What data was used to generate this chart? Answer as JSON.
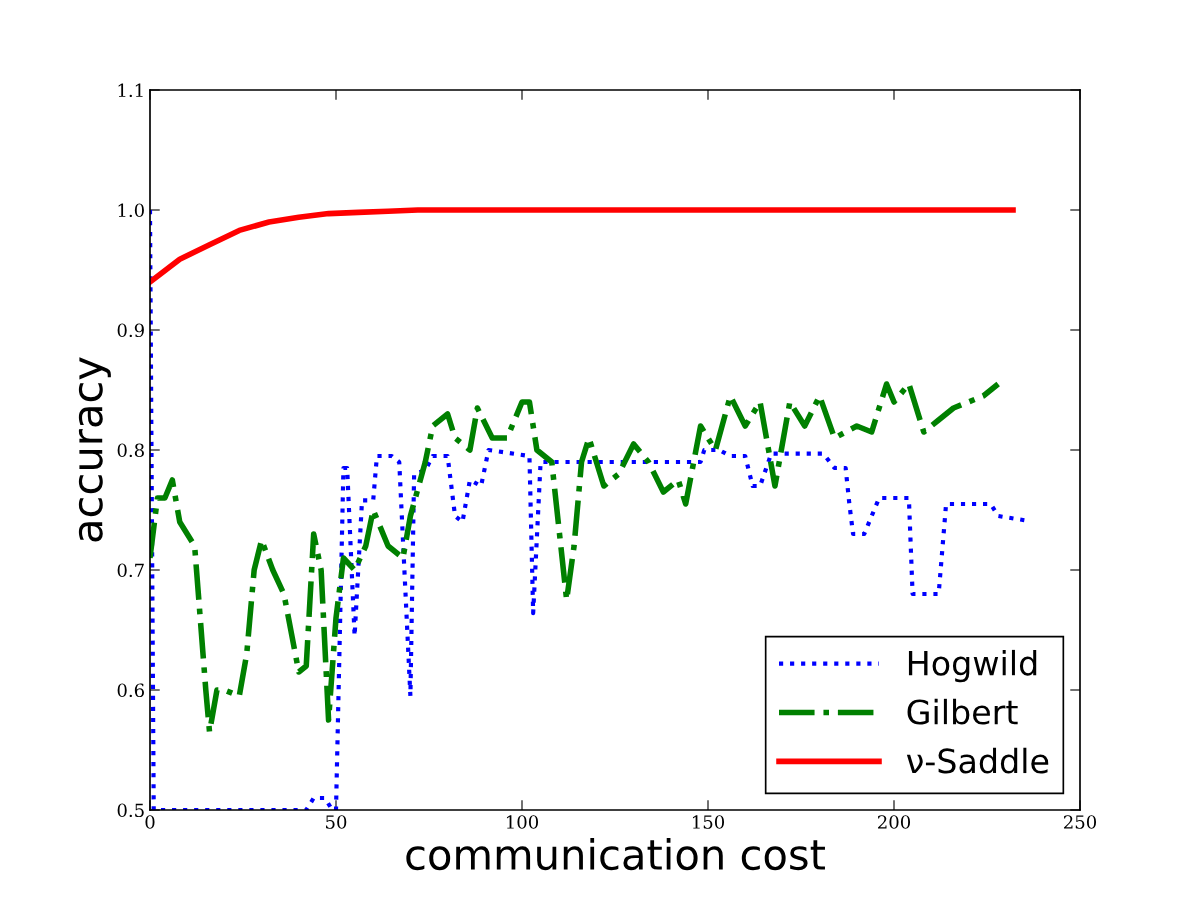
{
  "chart_data": {
    "type": "line",
    "xlabel": "communication cost",
    "ylabel": "accuracy",
    "xlim": [
      0,
      250
    ],
    "xticks": [
      0,
      50,
      100,
      150,
      200,
      250
    ],
    "ylim": [
      0.5,
      1.1
    ],
    "yticks": [
      0.5,
      0.6,
      0.7,
      0.8,
      0.9,
      {
        "value": 1,
        "label": "1.0"
      },
      1.1
    ],
    "grid": false,
    "legend": "bottom right",
    "marker": "none",
    "series": [
      {
        "name": "Hogwild",
        "color": "#0000ff",
        "line_style": "dotted",
        "x": [
          0,
          1,
          42,
          44,
          47,
          49,
          50,
          52,
          53,
          55,
          57,
          60,
          61,
          65,
          67,
          70,
          71,
          74,
          76,
          80,
          82,
          84,
          86,
          89,
          91,
          102,
          103,
          105,
          108,
          148,
          149,
          153,
          156,
          160,
          162,
          164,
          167,
          181,
          184,
          187,
          188,
          189,
          192,
          196,
          204,
          205,
          212,
          214,
          226,
          228,
          236
        ],
        "values": [
          1.0,
          0.5,
          0.5,
          0.51,
          0.51,
          0.5,
          0.5,
          0.785,
          0.785,
          0.645,
          0.758,
          0.758,
          0.795,
          0.795,
          0.79,
          0.595,
          0.78,
          0.783,
          0.795,
          0.795,
          0.745,
          0.74,
          0.775,
          0.77,
          0.8,
          0.795,
          0.664,
          0.79,
          0.79,
          0.79,
          0.8,
          0.8,
          0.795,
          0.795,
          0.77,
          0.77,
          0.797,
          0.797,
          0.785,
          0.785,
          0.755,
          0.73,
          0.73,
          0.76,
          0.76,
          0.68,
          0.68,
          0.755,
          0.755,
          0.745,
          0.741
        ]
      },
      {
        "name": "Gilbert",
        "color": "#008000",
        "line_style": "dashdot",
        "x": [
          0,
          2,
          4,
          6,
          8,
          12,
          15,
          16,
          18,
          20,
          24,
          26,
          28,
          30,
          33,
          36,
          40,
          42,
          44,
          46,
          48,
          50,
          52,
          55,
          58,
          60,
          64,
          68,
          70,
          74,
          76,
          80,
          82,
          86,
          88,
          92,
          96,
          100,
          102,
          104,
          108,
          112,
          114,
          116,
          118,
          122,
          126,
          130,
          134,
          138,
          142,
          144,
          148,
          152,
          156,
          160,
          164,
          168,
          172,
          176,
          180,
          184,
          190,
          194,
          198,
          200,
          204,
          208,
          212,
          216,
          220,
          224,
          228
        ],
        "values": [
          0.71,
          0.76,
          0.76,
          0.775,
          0.74,
          0.72,
          0.6,
          0.565,
          0.6,
          0.6,
          0.595,
          0.63,
          0.7,
          0.725,
          0.7,
          0.68,
          0.615,
          0.62,
          0.73,
          0.7,
          0.575,
          0.66,
          0.71,
          0.7,
          0.72,
          0.75,
          0.72,
          0.71,
          0.745,
          0.79,
          0.82,
          0.83,
          0.81,
          0.8,
          0.835,
          0.81,
          0.81,
          0.84,
          0.84,
          0.8,
          0.79,
          0.675,
          0.72,
          0.79,
          0.81,
          0.77,
          0.78,
          0.805,
          0.79,
          0.765,
          0.775,
          0.755,
          0.82,
          0.8,
          0.845,
          0.82,
          0.84,
          0.77,
          0.84,
          0.82,
          0.845,
          0.81,
          0.82,
          0.815,
          0.855,
          0.84,
          0.855,
          0.815,
          0.825,
          0.835,
          0.84,
          0.845,
          0.855
        ]
      },
      {
        "name": "ν-Saddle",
        "color": "#ff0000",
        "line_style": "solid",
        "x": [
          0,
          8,
          16,
          24,
          32,
          40,
          48,
          56,
          64,
          72,
          80,
          120,
          160,
          200,
          232
        ],
        "values": [
          0.94,
          0.959,
          0.971,
          0.983,
          0.99,
          0.994,
          0.997,
          0.998,
          0.999,
          1.0,
          1.0,
          1.0,
          1.0,
          1.0,
          1.0
        ]
      }
    ]
  }
}
